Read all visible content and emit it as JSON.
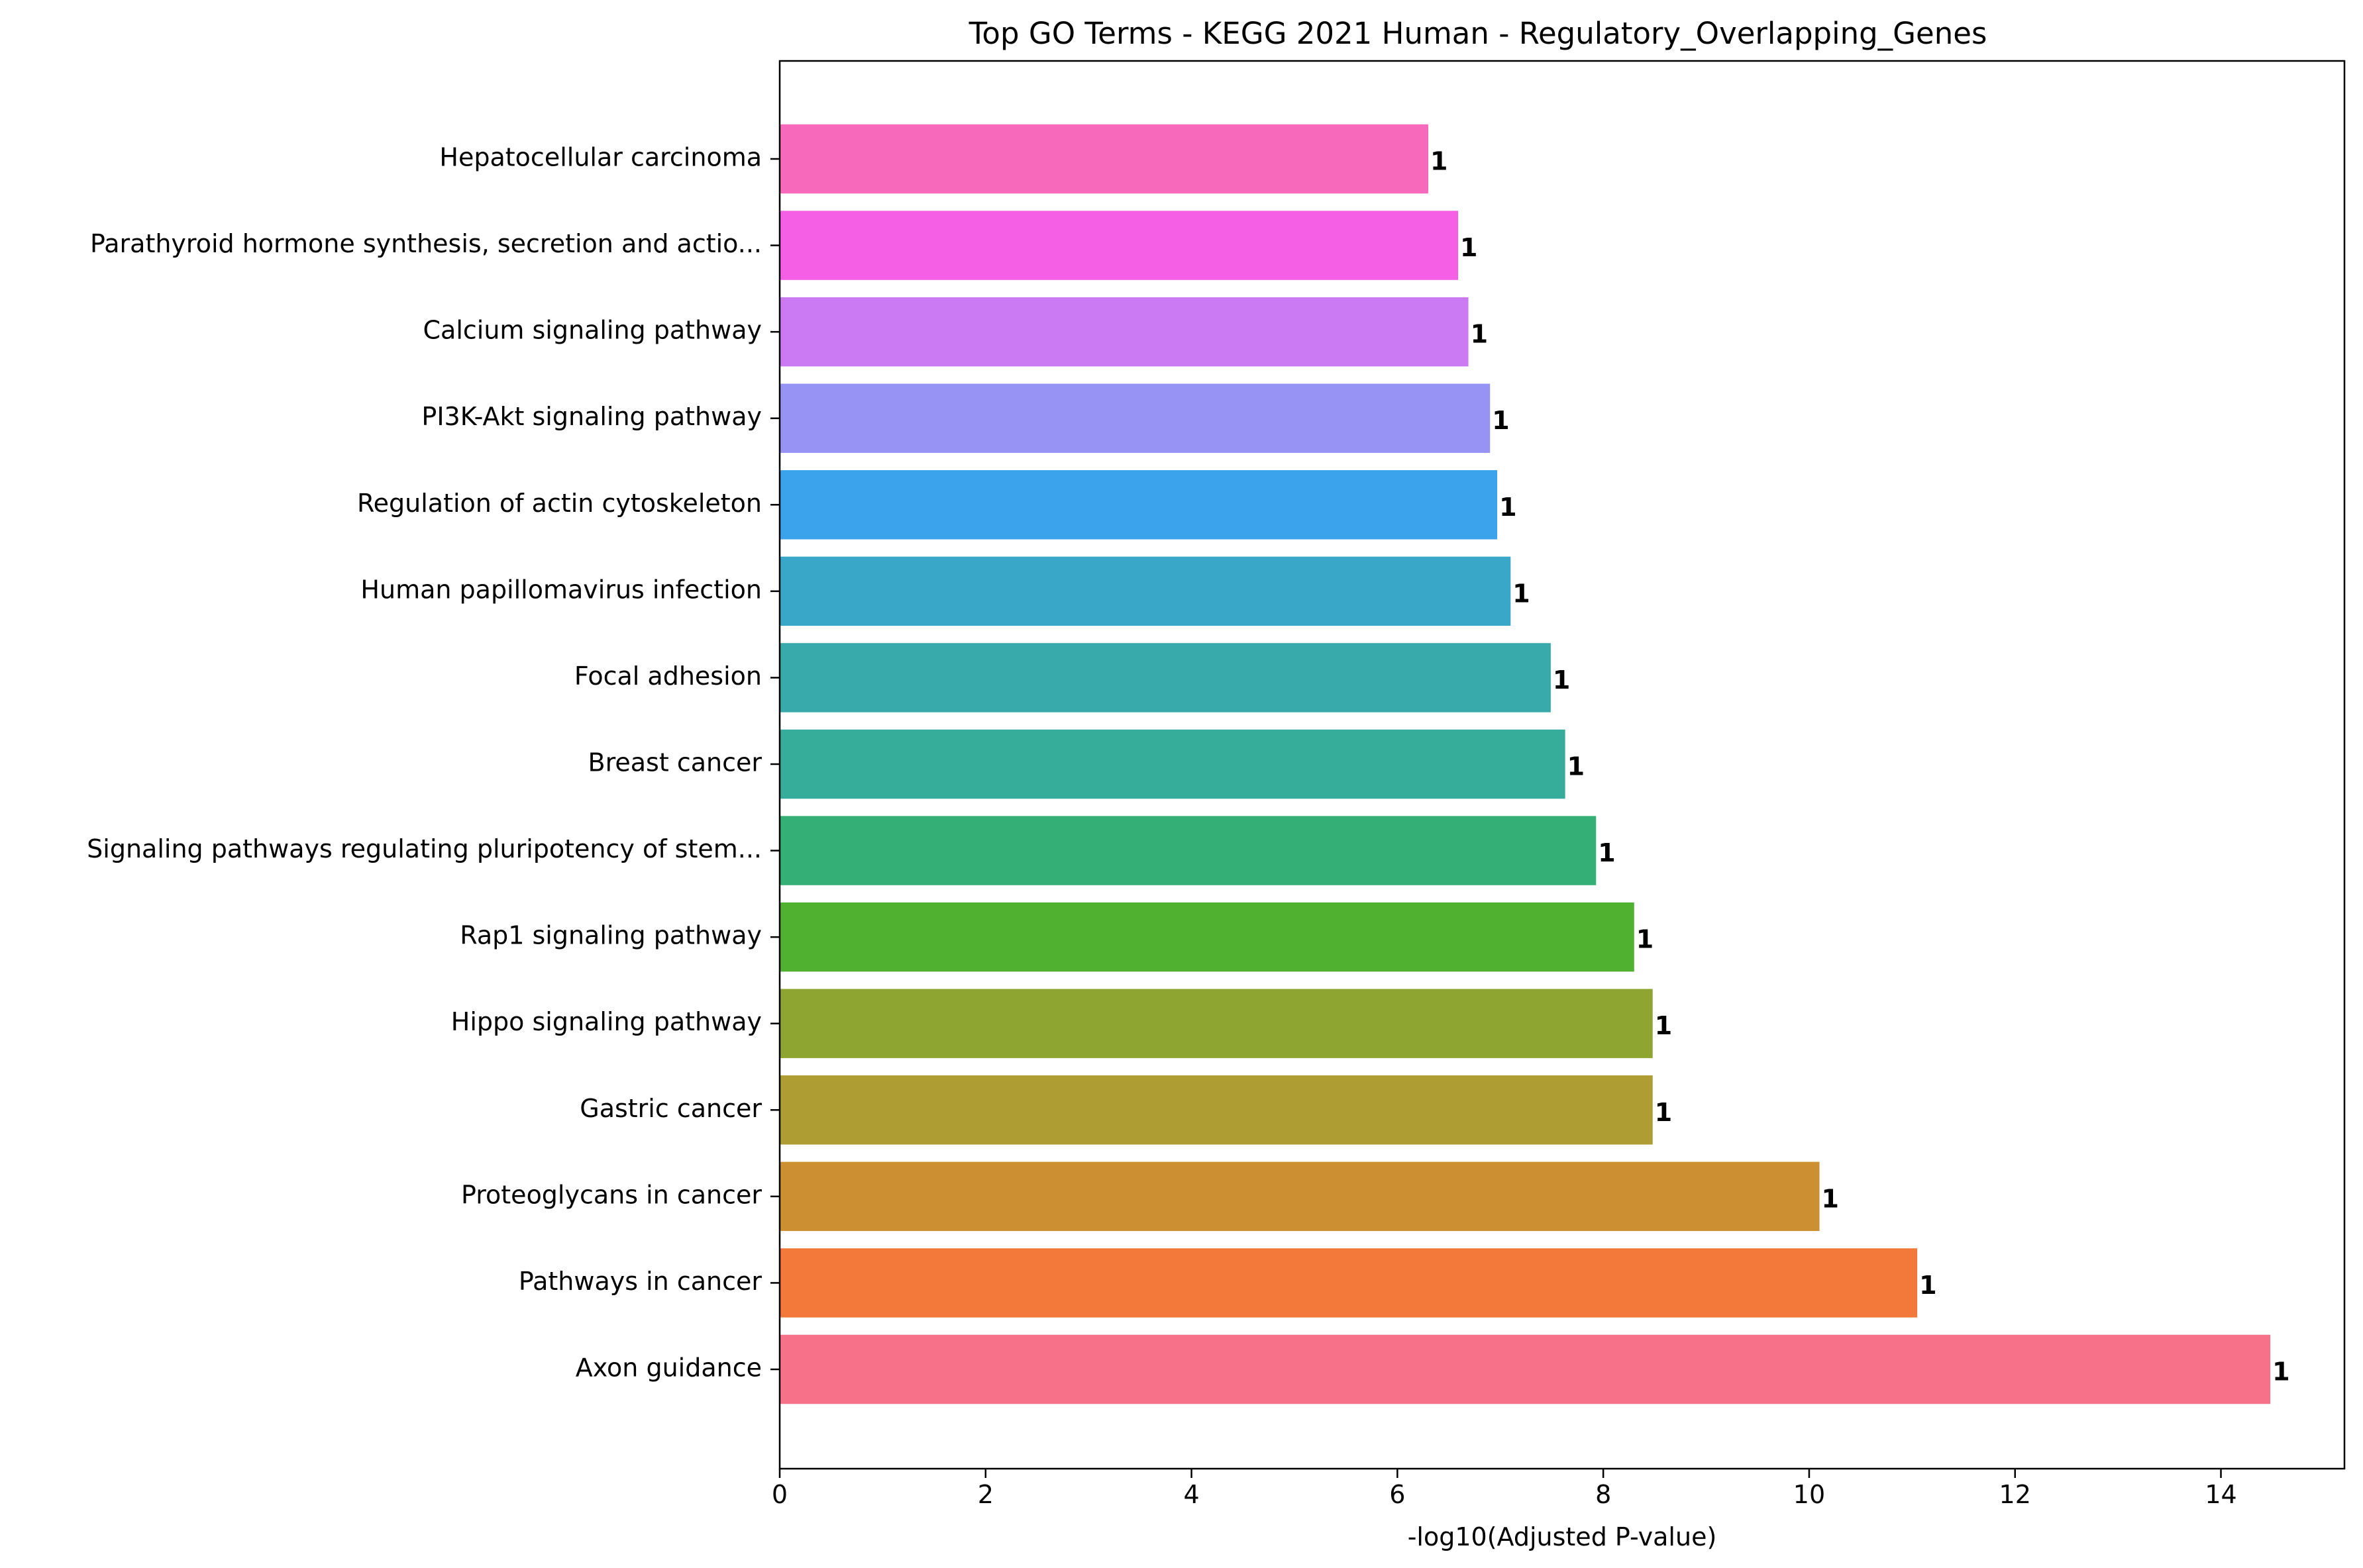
{
  "chart_data": {
    "type": "bar",
    "orientation": "horizontal",
    "title": "Top GO Terms - KEGG 2021 Human - Regulatory_Overlapping_Genes",
    "xlabel": "-log10(Adjusted P-value)",
    "ylabel": "",
    "xlim": [
      0,
      15.2
    ],
    "xticks": [
      0,
      2,
      4,
      6,
      8,
      10,
      12,
      14
    ],
    "grid": false,
    "legend": "none",
    "categories": [
      "Axon guidance",
      "Pathways in cancer",
      "Proteoglycans in cancer",
      "Gastric cancer",
      "Hippo signaling pathway",
      "Rap1 signaling pathway",
      "Signaling pathways regulating pluripotency of stem...",
      "Breast cancer",
      "Focal adhesion",
      "Human papillomavirus infection",
      "Regulation of actin cytoskeleton",
      "PI3K-Akt signaling pathway",
      "Calcium signaling pathway",
      "Parathyroid hormone synthesis, secretion and actio...",
      "Hepatocellular carcinoma"
    ],
    "values": [
      14.48,
      11.05,
      10.1,
      8.48,
      8.48,
      8.3,
      7.93,
      7.63,
      7.49,
      7.1,
      6.97,
      6.9,
      6.69,
      6.59,
      6.3
    ],
    "data_labels": [
      "1",
      "1",
      "1",
      "1",
      "1",
      "1",
      "1",
      "1",
      "1",
      "1",
      "1",
      "1",
      "1",
      "1",
      "1"
    ],
    "colors": [
      "#f77189",
      "#f3793b",
      "#cc8f32",
      "#ad9d32",
      "#8fa532",
      "#50b131",
      "#34af75",
      "#36ad9a",
      "#38aaac",
      "#39a7c8",
      "#3ba3ec",
      "#9793f5",
      "#cc79f4",
      "#f45fe6",
      "#f669bb"
    ]
  }
}
